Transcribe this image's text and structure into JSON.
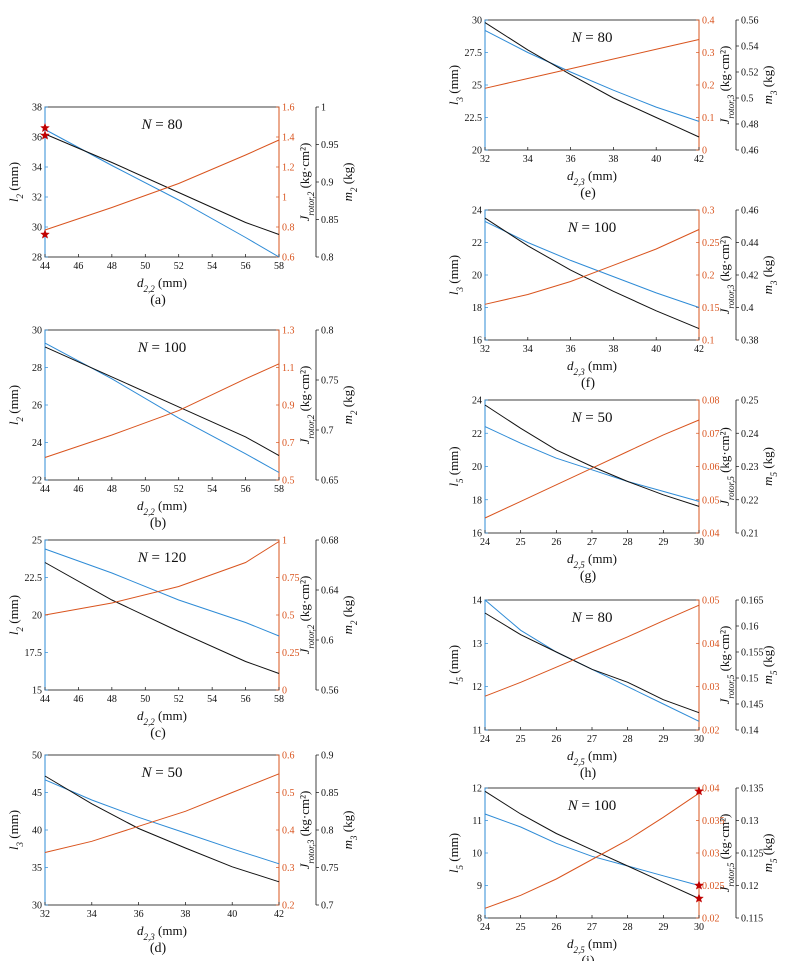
{
  "colors": {
    "blue": "#2e8bd6",
    "black": "#111111",
    "orange": "#d9541e",
    "star": "#c00000"
  },
  "chart_data": [
    {
      "id": "a",
      "type": "line",
      "caption": "(a)",
      "title": "N = 80",
      "xlabel": "d2,2 (mm)",
      "ylabel": "l2 (mm)",
      "y2label": "Jrotor,2 (kg·cm²)",
      "y3label": "m2 (kg)",
      "xticks": [
        "44",
        "46",
        "48",
        "50",
        "52",
        "54",
        "56",
        "58"
      ],
      "yticks": [
        "28",
        "30",
        "32",
        "34",
        "36",
        "38"
      ],
      "y2ticks": [
        "0.6",
        "0.8",
        "1",
        "1.2",
        "1.4",
        "1.6"
      ],
      "y3ticks": [
        "0.8",
        "0.85",
        "0.9",
        "0.95",
        "1"
      ],
      "xlim": [
        44,
        58
      ],
      "ylim": [
        28,
        38
      ],
      "y2lim": [
        0.6,
        1.6
      ],
      "y3lim": [
        0.8,
        1
      ],
      "x": [
        44,
        48,
        52,
        56,
        58
      ],
      "series": [
        {
          "axis": "left",
          "color": "blue",
          "values": [
            36.5,
            34.1,
            31.8,
            29.3,
            28.0
          ]
        },
        {
          "axis": "left",
          "color": "black",
          "values": [
            36.2,
            34.3,
            32.3,
            30.3,
            29.5
          ]
        },
        {
          "axis": "right",
          "color": "orange",
          "values": [
            0.78,
            0.93,
            1.09,
            1.28,
            1.38
          ]
        }
      ],
      "stars": [
        {
          "x": 44,
          "y": 36.6
        },
        {
          "x": 44,
          "y": 36.1
        },
        {
          "x": 44,
          "y": 29.5
        }
      ]
    },
    {
      "id": "b",
      "type": "line",
      "caption": "(b)",
      "title": "N = 100",
      "xlabel": "d2,2 (mm)",
      "ylabel": "l2 (mm)",
      "y2label": "Jrotor,2 (kg·cm²)",
      "y3label": "m2 (kg)",
      "xticks": [
        "44",
        "46",
        "48",
        "50",
        "52",
        "54",
        "56",
        "58"
      ],
      "yticks": [
        "22",
        "24",
        "26",
        "28",
        "30"
      ],
      "y2ticks": [
        "0.5",
        "0.7",
        "0.9",
        "1.1",
        "1.3"
      ],
      "y3ticks": [
        "0.65",
        "0.7",
        "0.75",
        "0.8"
      ],
      "xlim": [
        44,
        58
      ],
      "ylim": [
        22,
        30
      ],
      "y2lim": [
        0.5,
        1.3
      ],
      "y3lim": [
        0.65,
        0.8
      ],
      "x": [
        44,
        48,
        52,
        56,
        58
      ],
      "series": [
        {
          "axis": "left",
          "color": "blue",
          "values": [
            29.3,
            27.4,
            25.3,
            23.4,
            22.4
          ]
        },
        {
          "axis": "left",
          "color": "black",
          "values": [
            29.1,
            27.5,
            25.9,
            24.3,
            23.3
          ]
        },
        {
          "axis": "right",
          "color": "orange",
          "values": [
            0.62,
            0.74,
            0.87,
            1.04,
            1.12
          ]
        }
      ],
      "stars": []
    },
    {
      "id": "c",
      "type": "line",
      "caption": "(c)",
      "title": "N = 120",
      "xlabel": "d2,2 (mm)",
      "ylabel": "l2 (mm)",
      "y2label": "Jrotor,2 (kg·cm²)",
      "y3label": "m2 (kg)",
      "xticks": [
        "44",
        "46",
        "48",
        "50",
        "52",
        "54",
        "56",
        "58"
      ],
      "yticks": [
        "15",
        "17.5",
        "20",
        "22.5",
        "25"
      ],
      "y2ticks": [
        "0",
        "0.25",
        "0.5",
        "0.75",
        "1"
      ],
      "y3ticks": [
        "0.56",
        "0.6",
        "0.64",
        "0.68"
      ],
      "xlim": [
        44,
        58
      ],
      "ylim": [
        15,
        25
      ],
      "y2lim": [
        0,
        1
      ],
      "y3lim": [
        0.56,
        0.68
      ],
      "x": [
        44,
        48,
        52,
        56,
        58
      ],
      "series": [
        {
          "axis": "left",
          "color": "blue",
          "values": [
            24.4,
            22.8,
            21.0,
            19.5,
            18.6
          ]
        },
        {
          "axis": "left",
          "color": "black",
          "values": [
            23.5,
            21.0,
            18.9,
            16.9,
            16.1
          ]
        },
        {
          "axis": "right",
          "color": "orange",
          "values": [
            0.5,
            0.58,
            0.69,
            0.85,
            0.99
          ]
        }
      ],
      "stars": []
    },
    {
      "id": "d",
      "type": "line",
      "caption": "(d)",
      "title": "N = 50",
      "xlabel": "d2,3 (mm)",
      "ylabel": "l3 (mm)",
      "y2label": "Jrotor,3 (kg·cm²)",
      "y3label": "m3 (kg)",
      "xticks": [
        "32",
        "34",
        "36",
        "38",
        "40",
        "42"
      ],
      "yticks": [
        "30",
        "35",
        "40",
        "45",
        "50"
      ],
      "y2ticks": [
        "0.2",
        "0.3",
        "0.4",
        "0.5",
        "0.6"
      ],
      "y3ticks": [
        "0.7",
        "0.75",
        "0.8",
        "0.85",
        "0.9"
      ],
      "xlim": [
        32,
        42
      ],
      "ylim": [
        30,
        50
      ],
      "y2lim": [
        0.2,
        0.6
      ],
      "y3lim": [
        0.7,
        0.9
      ],
      "x": [
        32,
        34,
        36,
        38,
        40,
        42
      ],
      "series": [
        {
          "axis": "left",
          "color": "blue",
          "values": [
            46.7,
            44.0,
            41.7,
            39.6,
            37.5,
            35.5
          ]
        },
        {
          "axis": "left",
          "color": "black",
          "values": [
            47.2,
            43.5,
            40.2,
            37.6,
            35.1,
            33.1
          ]
        },
        {
          "axis": "right",
          "color": "orange",
          "values": [
            0.34,
            0.37,
            0.41,
            0.45,
            0.5,
            0.55
          ]
        }
      ],
      "stars": []
    },
    {
      "id": "e",
      "type": "line",
      "caption": "(e)",
      "title": "N = 80",
      "xlabel": "d2,3 (mm)",
      "ylabel": "l3 (mm)",
      "y2label": "Jrotor,3 (kg·cm²)",
      "y3label": "m3 (kg)",
      "xticks": [
        "32",
        "34",
        "36",
        "38",
        "40",
        "42"
      ],
      "yticks": [
        "20",
        "22.5",
        "25",
        "27.5",
        "30"
      ],
      "y2ticks": [
        "0",
        "0.1",
        "0.2",
        "0.3",
        "0.4"
      ],
      "y3ticks": [
        "0.46",
        "0.48",
        "0.5",
        "0.52",
        "0.54",
        "0.56"
      ],
      "xlim": [
        32,
        42
      ],
      "ylim": [
        20,
        30
      ],
      "y2lim": [
        0,
        0.4
      ],
      "y3lim": [
        0.46,
        0.56
      ],
      "x": [
        32,
        34,
        36,
        38,
        40,
        42
      ],
      "series": [
        {
          "axis": "left",
          "color": "blue",
          "values": [
            29.2,
            27.5,
            26.0,
            24.6,
            23.3,
            22.2
          ]
        },
        {
          "axis": "left",
          "color": "black",
          "values": [
            29.8,
            27.7,
            25.8,
            24.0,
            22.5,
            21.0
          ]
        },
        {
          "axis": "right",
          "color": "orange",
          "values": [
            0.19,
            0.22,
            0.25,
            0.28,
            0.31,
            0.34
          ]
        }
      ],
      "stars": []
    },
    {
      "id": "f",
      "type": "line",
      "caption": "(f)",
      "title": "N = 100",
      "xlabel": "d2,3 (mm)",
      "ylabel": "l3 (mm)",
      "y2label": "Jrotor,3 (kg·cm²)",
      "y3label": "m3 (kg)",
      "xticks": [
        "32",
        "34",
        "36",
        "38",
        "40",
        "42"
      ],
      "yticks": [
        "16",
        "18",
        "20",
        "22",
        "24"
      ],
      "y2ticks": [
        "0.1",
        "0.15",
        "0.2",
        "0.25",
        "0.3"
      ],
      "y3ticks": [
        "0.38",
        "0.4",
        "0.42",
        "0.44",
        "0.46"
      ],
      "xlim": [
        32,
        42
      ],
      "ylim": [
        16,
        24
      ],
      "y2lim": [
        0.1,
        0.3
      ],
      "y3lim": [
        0.38,
        0.46
      ],
      "x": [
        32,
        34,
        36,
        38,
        40,
        42
      ],
      "series": [
        {
          "axis": "left",
          "color": "blue",
          "values": [
            23.3,
            22.0,
            20.9,
            19.9,
            18.9,
            18.0
          ]
        },
        {
          "axis": "left",
          "color": "black",
          "values": [
            23.5,
            21.8,
            20.3,
            19.0,
            17.8,
            16.7
          ]
        },
        {
          "axis": "right",
          "color": "orange",
          "values": [
            0.155,
            0.17,
            0.19,
            0.215,
            0.24,
            0.27
          ]
        }
      ],
      "stars": []
    },
    {
      "id": "g",
      "type": "line",
      "caption": "(g)",
      "title": "N = 50",
      "xlabel": "d2,5 (mm)",
      "ylabel": "l5 (mm)",
      "y2label": "Jrotor,5 (kg·cm²)",
      "y3label": "m5 (kg)",
      "xticks": [
        "24",
        "25",
        "26",
        "27",
        "28",
        "29",
        "30"
      ],
      "yticks": [
        "16",
        "18",
        "20",
        "22",
        "24"
      ],
      "y2ticks": [
        "0.04",
        "0.05",
        "0.06",
        "0.07",
        "0.08"
      ],
      "y3ticks": [
        "0.21",
        "0.22",
        "0.23",
        "0.24",
        "0.25"
      ],
      "xlim": [
        24,
        30
      ],
      "ylim": [
        16,
        24
      ],
      "y2lim": [
        0.04,
        0.08
      ],
      "y3lim": [
        0.21,
        0.25
      ],
      "x": [
        24,
        25,
        26,
        27,
        28,
        29,
        30
      ],
      "series": [
        {
          "axis": "left",
          "color": "blue",
          "values": [
            22.4,
            21.4,
            20.5,
            19.8,
            19.1,
            18.5,
            17.9
          ]
        },
        {
          "axis": "left",
          "color": "black",
          "values": [
            23.7,
            22.3,
            21.0,
            20.0,
            19.1,
            18.3,
            17.6
          ]
        },
        {
          "axis": "right",
          "color": "orange",
          "values": [
            0.0445,
            0.0495,
            0.0545,
            0.0595,
            0.0645,
            0.0695,
            0.074
          ]
        }
      ],
      "stars": []
    },
    {
      "id": "h",
      "type": "line",
      "caption": "(h)",
      "title": "N = 80",
      "xlabel": "d2,5 (mm)",
      "ylabel": "l5 (mm)",
      "y2label": "Jrotor,5 (kg·cm²)",
      "y3label": "m5 (kg)",
      "xticks": [
        "24",
        "25",
        "26",
        "27",
        "28",
        "29",
        "30"
      ],
      "yticks": [
        "11",
        "12",
        "13",
        "14"
      ],
      "y2ticks": [
        "0.02",
        "0.03",
        "0.04",
        "0.05"
      ],
      "y3ticks": [
        "0.14",
        "0.145",
        "0.15",
        "0.155",
        "0.16",
        "0.165"
      ],
      "xlim": [
        24,
        30
      ],
      "ylim": [
        11,
        14
      ],
      "y2lim": [
        0.02,
        0.05
      ],
      "y3lim": [
        0.14,
        0.165
      ],
      "x": [
        24,
        25,
        26,
        27,
        28,
        29,
        30
      ],
      "series": [
        {
          "axis": "left",
          "color": "blue",
          "values": [
            14.0,
            13.3,
            12.8,
            12.4,
            12.0,
            11.6,
            11.2
          ]
        },
        {
          "axis": "left",
          "color": "black",
          "values": [
            13.7,
            13.2,
            12.8,
            12.4,
            12.1,
            11.7,
            11.4
          ]
        },
        {
          "axis": "right",
          "color": "orange",
          "values": [
            0.0278,
            0.031,
            0.0345,
            0.038,
            0.0415,
            0.0452,
            0.0488
          ]
        }
      ],
      "stars": []
    },
    {
      "id": "i",
      "type": "line",
      "caption": "(i)",
      "title": "N = 100",
      "xlabel": "d2,5 (mm)",
      "ylabel": "l5 (mm)",
      "y2label": "Jrotor,5 (kg·cm²)",
      "y3label": "m5 (kg)",
      "xticks": [
        "24",
        "25",
        "26",
        "27",
        "28",
        "29",
        "30"
      ],
      "yticks": [
        "8",
        "9",
        "10",
        "11",
        "12"
      ],
      "y2ticks": [
        "0.02",
        "0.025",
        "0.03",
        "0.035",
        "0.04"
      ],
      "y3ticks": [
        "0.115",
        "0.12",
        "0.125",
        "0.13",
        "0.135"
      ],
      "xlim": [
        24,
        30
      ],
      "ylim": [
        8,
        12
      ],
      "y2lim": [
        0.02,
        0.04
      ],
      "y3lim": [
        0.115,
        0.135
      ],
      "x": [
        24,
        25,
        26,
        27,
        28,
        29,
        30
      ],
      "series": [
        {
          "axis": "left",
          "color": "blue",
          "values": [
            11.2,
            10.8,
            10.3,
            9.9,
            9.6,
            9.3,
            9.0
          ]
        },
        {
          "axis": "left",
          "color": "black",
          "values": [
            11.9,
            11.2,
            10.6,
            10.1,
            9.6,
            9.1,
            8.6
          ]
        },
        {
          "axis": "right",
          "color": "orange",
          "values": [
            0.0215,
            0.0235,
            0.026,
            0.029,
            0.032,
            0.0355,
            0.0392
          ]
        }
      ],
      "stars": [
        {
          "x": 30,
          "y": 9.0
        },
        {
          "x": 30,
          "y": 8.6
        },
        {
          "x": 30,
          "y": 11.9
        }
      ]
    }
  ]
}
